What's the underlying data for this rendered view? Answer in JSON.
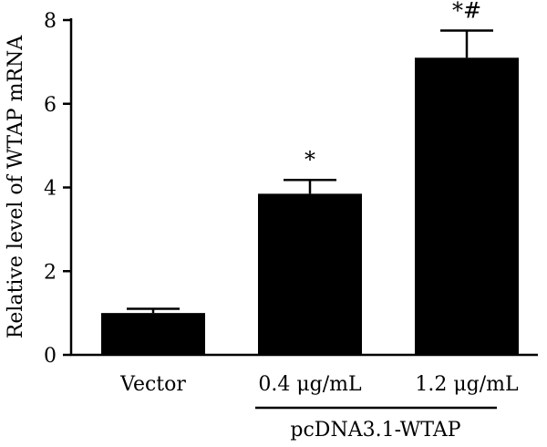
{
  "chart_data": {
    "type": "bar",
    "title": "",
    "xlabel": "",
    "ylabel": "Relative level of WTAP mRNA",
    "ylim": [
      0,
      8
    ],
    "yticks": [
      0,
      2,
      4,
      6,
      8
    ],
    "categories": [
      "Vector",
      "0.4 μg/mL",
      "1.2 μg/mL"
    ],
    "values": [
      1.0,
      3.85,
      7.1
    ],
    "errors": [
      0.1,
      0.33,
      0.65
    ],
    "annotations": [
      "",
      "*",
      "*#"
    ],
    "group_label": "pcDNA3.1-WTAP",
    "bar_color": "#000000",
    "grid": false
  }
}
